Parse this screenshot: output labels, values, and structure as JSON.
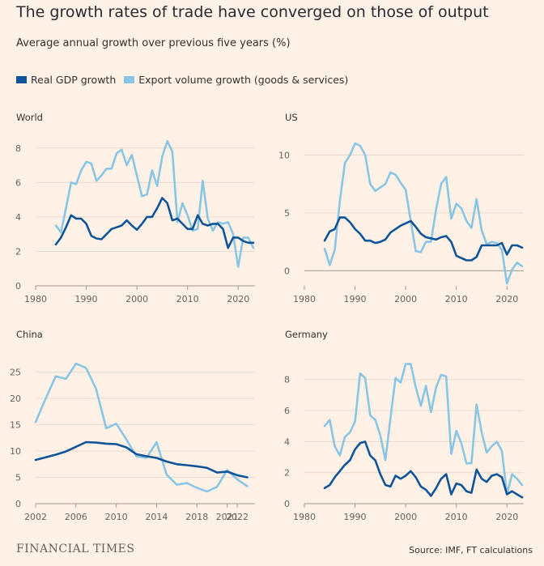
{
  "header": {
    "title": "The growth rates of trade have converged on those of output",
    "subtitle": "Average annual growth over previous five years (%)"
  },
  "legend": {
    "items": [
      {
        "label": "Real GDP growth",
        "color": "#0f5499"
      },
      {
        "label": "Export volume growth (goods & services)",
        "color": "#89c5e5"
      }
    ]
  },
  "footer": {
    "brand": "FINANCIAL TIMES",
    "source": "Source: IMF, FT calculations"
  },
  "chart_data": [
    {
      "type": "line",
      "title": "World",
      "xlim": [
        1980,
        2023
      ],
      "ylim": [
        0,
        8.6
      ],
      "xticks": [
        1980,
        1990,
        2000,
        2010,
        2020
      ],
      "yticks": [
        0,
        2,
        4,
        6,
        8
      ],
      "grid": true,
      "series": [
        {
          "name": "Real GDP growth",
          "color": "#0f5499",
          "x": [
            1984,
            1985,
            1986,
            1987,
            1988,
            1989,
            1990,
            1991,
            1992,
            1993,
            1994,
            1995,
            1996,
            1997,
            1998,
            1999,
            2000,
            2001,
            2002,
            2003,
            2004,
            2005,
            2006,
            2007,
            2008,
            2009,
            2010,
            2011,
            2012,
            2013,
            2014,
            2015,
            2016,
            2017,
            2018,
            2019,
            2020,
            2021,
            2022,
            2023
          ],
          "values": [
            2.4,
            2.8,
            3.4,
            4.1,
            3.9,
            3.9,
            3.6,
            2.9,
            2.75,
            2.7,
            3.0,
            3.3,
            3.4,
            3.5,
            3.8,
            3.5,
            3.25,
            3.6,
            4.0,
            4.0,
            4.5,
            5.1,
            4.8,
            3.8,
            3.9,
            3.6,
            3.3,
            3.3,
            4.1,
            3.6,
            3.5,
            3.6,
            3.6,
            3.3,
            2.2,
            2.8,
            2.8,
            2.6,
            2.5,
            2.5
          ]
        },
        {
          "name": "Export volume growth (goods & services)",
          "color": "#89c5e5",
          "x": [
            1984,
            1985,
            1986,
            1987,
            1988,
            1989,
            1990,
            1991,
            1992,
            1993,
            1994,
            1995,
            1996,
            1997,
            1998,
            1999,
            2000,
            2001,
            2002,
            2003,
            2004,
            2005,
            2006,
            2007,
            2008,
            2009,
            2010,
            2011,
            2012,
            2013,
            2014,
            2015,
            2016,
            2017,
            2018,
            2019,
            2020,
            2021,
            2022,
            2023
          ],
          "values": [
            3.5,
            3.1,
            4.5,
            6.0,
            5.9,
            6.7,
            7.2,
            7.1,
            6.1,
            6.4,
            6.8,
            6.8,
            7.7,
            7.9,
            7.0,
            7.6,
            6.4,
            5.2,
            5.3,
            6.7,
            5.8,
            7.5,
            8.4,
            7.8,
            3.7,
            4.8,
            4.1,
            3.2,
            3.3,
            6.1,
            3.9,
            3.2,
            3.7,
            3.6,
            3.7,
            3.0,
            1.1,
            2.8,
            2.8,
            2.2
          ]
        }
      ]
    },
    {
      "type": "line",
      "title": "US",
      "xlim": [
        1980,
        2023
      ],
      "ylim": [
        -1.3,
        11.5
      ],
      "xticks": [
        1980,
        1990,
        2000,
        2010,
        2020
      ],
      "yticks": [
        0,
        5,
        10
      ],
      "grid": true,
      "series": [
        {
          "name": "Real GDP growth",
          "color": "#0f5499",
          "x": [
            1984,
            1985,
            1986,
            1987,
            1988,
            1989,
            1990,
            1991,
            1992,
            1993,
            1994,
            1995,
            1996,
            1997,
            1998,
            1999,
            2000,
            2001,
            2002,
            2003,
            2004,
            2005,
            2006,
            2007,
            2008,
            2009,
            2010,
            2011,
            2012,
            2013,
            2014,
            2015,
            2016,
            2017,
            2018,
            2019,
            2020,
            2021,
            2022,
            2023
          ],
          "values": [
            2.6,
            3.4,
            3.6,
            4.6,
            4.6,
            4.2,
            3.6,
            3.2,
            2.6,
            2.6,
            2.4,
            2.5,
            2.7,
            3.3,
            3.6,
            3.9,
            4.1,
            4.3,
            3.8,
            3.2,
            2.9,
            2.8,
            2.7,
            2.9,
            3.0,
            2.5,
            1.3,
            1.1,
            0.9,
            0.9,
            1.2,
            2.2,
            2.2,
            2.2,
            2.2,
            2.4,
            1.4,
            2.2,
            2.2,
            2.0
          ]
        },
        {
          "name": "Export volume growth (goods & services)",
          "color": "#89c5e5",
          "x": [
            1984,
            1985,
            1986,
            1987,
            1988,
            1989,
            1990,
            1991,
            1992,
            1993,
            1994,
            1995,
            1996,
            1997,
            1998,
            1999,
            2000,
            2001,
            2002,
            2003,
            2004,
            2005,
            2006,
            2007,
            2008,
            2009,
            2010,
            2011,
            2012,
            2013,
            2014,
            2015,
            2016,
            2017,
            2018,
            2019,
            2020,
            2021,
            2022,
            2023
          ],
          "values": [
            1.9,
            0.5,
            1.8,
            6.0,
            9.3,
            10.0,
            11.0,
            10.8,
            10.0,
            7.5,
            6.9,
            7.2,
            7.5,
            8.5,
            8.3,
            7.6,
            7.0,
            4.3,
            1.7,
            1.6,
            2.5,
            2.5,
            5.3,
            7.5,
            8.1,
            4.5,
            5.8,
            5.4,
            4.3,
            3.7,
            6.2,
            3.5,
            2.3,
            2.5,
            2.4,
            1.8,
            -1.1,
            0.1,
            0.7,
            0.4
          ]
        }
      ]
    },
    {
      "type": "line",
      "title": "China",
      "xlim": [
        2002,
        2023.6
      ],
      "ylim": [
        0,
        28
      ],
      "xticks": [
        2002,
        2006,
        2010,
        2014,
        2018,
        2022
      ],
      "xtick_labels": [
        "2002",
        "2006",
        "2010",
        "2014",
        "2018",
        "2022"
      ],
      "extra_xticks": [
        2021
      ],
      "extra_xtick_labels": [
        "2021"
      ],
      "yticks": [
        0,
        5,
        10,
        15,
        20,
        25
      ],
      "grid": true,
      "series": [
        {
          "name": "Real GDP growth",
          "color": "#0f5499",
          "x": [
            2002,
            2003,
            2004,
            2005,
            2006,
            2007,
            2008,
            2009,
            2010,
            2011,
            2012,
            2013,
            2014,
            2015,
            2016,
            2017,
            2018,
            2019,
            2020,
            2021,
            2022,
            2023
          ],
          "values": [
            8.3,
            8.8,
            9.3,
            9.9,
            10.8,
            11.7,
            11.6,
            11.4,
            11.3,
            10.7,
            9.4,
            9.0,
            8.7,
            8.0,
            7.5,
            7.3,
            7.1,
            6.8,
            5.9,
            6.1,
            5.4,
            5.0
          ]
        },
        {
          "name": "Export volume growth (goods & services)",
          "color": "#89c5e5",
          "x": [
            2002,
            2003,
            2004,
            2005,
            2006,
            2007,
            2008,
            2009,
            2010,
            2011,
            2012,
            2013,
            2014,
            2015,
            2016,
            2017,
            2018,
            2019,
            2020,
            2021,
            2022,
            2023
          ],
          "values": [
            15.5,
            20.0,
            24.2,
            23.7,
            26.6,
            25.8,
            21.8,
            14.3,
            15.2,
            12.2,
            9.0,
            8.7,
            11.7,
            5.5,
            3.6,
            3.9,
            3.0,
            2.3,
            3.2,
            6.4,
            4.6,
            3.3
          ]
        }
      ]
    },
    {
      "type": "line",
      "title": "Germany",
      "xlim": [
        1980,
        2023
      ],
      "ylim": [
        0,
        9.5
      ],
      "xticks": [
        1980,
        1990,
        2000,
        2010,
        2020
      ],
      "yticks": [
        0,
        2,
        4,
        6,
        8
      ],
      "grid": true,
      "series": [
        {
          "name": "Real GDP growth",
          "color": "#0f5499",
          "x": [
            1984,
            1985,
            1986,
            1987,
            1988,
            1989,
            1990,
            1991,
            1992,
            1993,
            1994,
            1995,
            1996,
            1997,
            1998,
            1999,
            2000,
            2001,
            2002,
            2003,
            2004,
            2005,
            2006,
            2007,
            2008,
            2009,
            2010,
            2011,
            2012,
            2013,
            2014,
            2015,
            2016,
            2017,
            2018,
            2019,
            2020,
            2021,
            2022,
            2023
          ],
          "values": [
            1.0,
            1.2,
            1.7,
            2.1,
            2.5,
            2.8,
            3.5,
            3.9,
            4.0,
            3.1,
            2.8,
            1.9,
            1.2,
            1.1,
            1.8,
            1.6,
            1.8,
            2.1,
            1.7,
            1.1,
            0.9,
            0.5,
            1.0,
            1.6,
            1.9,
            0.6,
            1.3,
            1.2,
            0.8,
            0.7,
            2.2,
            1.6,
            1.4,
            1.8,
            1.9,
            1.7,
            0.6,
            0.8,
            0.6,
            0.4
          ]
        },
        {
          "name": "Export volume growth (goods & services)",
          "color": "#89c5e5",
          "x": [
            1984,
            1985,
            1986,
            1987,
            1988,
            1989,
            1990,
            1991,
            1992,
            1993,
            1994,
            1995,
            1996,
            1997,
            1998,
            1999,
            2000,
            2001,
            2002,
            2003,
            2004,
            2005,
            2006,
            2007,
            2008,
            2009,
            2010,
            2011,
            2012,
            2013,
            2014,
            2015,
            2016,
            2017,
            2018,
            2019,
            2020,
            2021,
            2022,
            2023
          ],
          "values": [
            5.0,
            5.4,
            3.7,
            3.1,
            4.3,
            4.6,
            5.3,
            8.4,
            8.1,
            5.7,
            5.4,
            4.4,
            2.8,
            5.5,
            8.1,
            7.8,
            9.0,
            9.0,
            7.5,
            6.3,
            7.6,
            5.9,
            7.5,
            8.3,
            8.2,
            3.2,
            4.7,
            3.9,
            2.6,
            2.6,
            6.4,
            4.6,
            3.3,
            3.7,
            4.0,
            3.4,
            0.6,
            1.9,
            1.6,
            1.2
          ]
        }
      ]
    }
  ]
}
